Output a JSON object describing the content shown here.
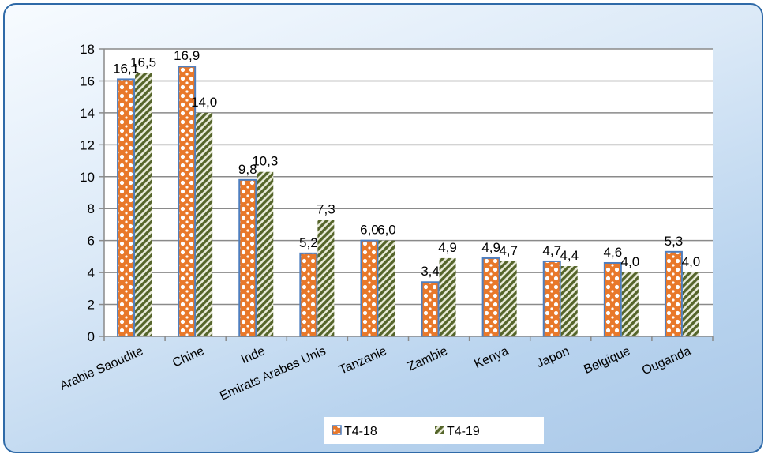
{
  "chart_data": {
    "type": "bar",
    "categories": [
      "Arabie Saoudite",
      "Chine",
      "Inde",
      "Emirats Arabes Unis",
      "Tanzanie",
      "Zambie",
      "Kenya",
      "Japon",
      "Belgique",
      "Ouganda"
    ],
    "series": [
      {
        "name": "T4-18",
        "values": [
          16.1,
          16.9,
          9.8,
          5.2,
          6.0,
          3.4,
          4.9,
          4.7,
          4.6,
          5.3
        ],
        "labels": [
          "16,1",
          "16,9",
          "9,8",
          "5,2",
          "6,0",
          "3,4",
          "4,9",
          "4,7",
          "4,6",
          "5,3"
        ],
        "color": "#e8782a"
      },
      {
        "name": "T4-19",
        "values": [
          16.5,
          14.0,
          10.3,
          7.3,
          6.0,
          4.9,
          4.7,
          4.4,
          4.0,
          4.0
        ],
        "labels": [
          "16,5",
          "14,0",
          "10,3",
          "7,3",
          "6,0",
          "4,9",
          "4,7",
          "4,4",
          "4,0",
          "4,0"
        ],
        "color": "#5a6b2a"
      }
    ],
    "yticks": [
      "0",
      "2",
      "4",
      "6",
      "8",
      "10",
      "12",
      "14",
      "16",
      "18"
    ],
    "ylim": [
      0,
      18
    ],
    "grid": true,
    "legend": "bottom"
  }
}
